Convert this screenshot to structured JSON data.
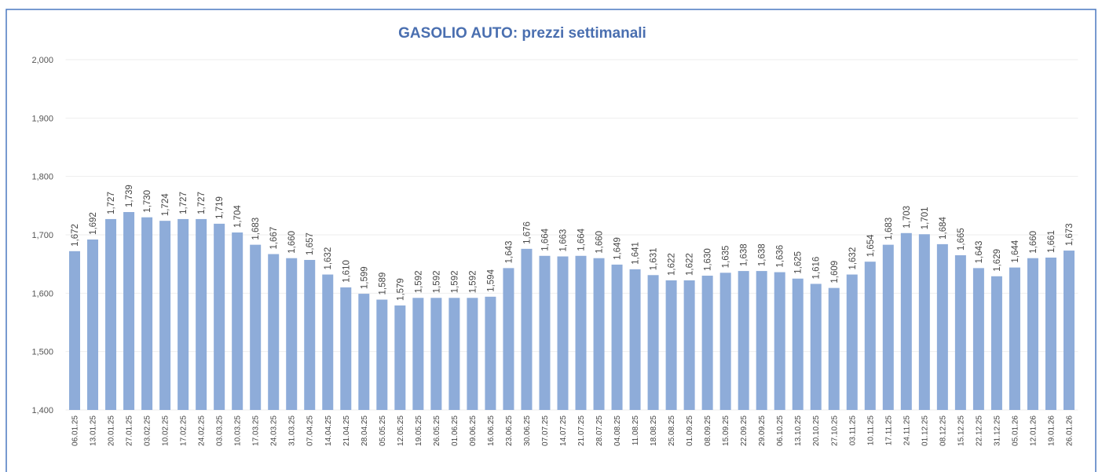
{
  "chart_data": {
    "type": "bar",
    "title": "GASOLIO AUTO: prezzi settimanali",
    "categories": [
      "06.01.25",
      "13.01.25",
      "20.01.25",
      "27.01.25",
      "03.02.25",
      "10.02.25",
      "17.02.25",
      "24.02.25",
      "03.03.25",
      "10.03.25",
      "17.03.25",
      "24.03.25",
      "31.03.25",
      "07.04.25",
      "14.04.25",
      "21.04.25",
      "28.04.25",
      "05.05.25",
      "12.05.25",
      "19.05.25",
      "26.05.25",
      "01.06.25",
      "09.06.25",
      "16.06.25",
      "23.06.25",
      "30.06.25",
      "07.07.25",
      "14.07.25",
      "21.07.25",
      "28.07.25",
      "04.08.25",
      "11.08.25",
      "18.08.25",
      "25.08.25",
      "01.09.25",
      "08.09.25",
      "15.09.25",
      "22.09.25",
      "29.09.25",
      "06.10.25",
      "13.10.25",
      "20.10.25",
      "27.10.25",
      "03.11.25",
      "10.11.25",
      "17.11.25",
      "24.11.25",
      "01.12.25",
      "08.12.25",
      "15.12.25",
      "22.12.25",
      "31.12.25",
      "05.01.26",
      "12.01.26",
      "19.01.26",
      "26.01.26"
    ],
    "values": [
      1.672,
      1.692,
      1.727,
      1.739,
      1.73,
      1.724,
      1.727,
      1.727,
      1.719,
      1.704,
      1.683,
      1.667,
      1.66,
      1.657,
      1.632,
      1.61,
      1.599,
      1.589,
      1.579,
      1.592,
      1.592,
      1.592,
      1.592,
      1.594,
      1.643,
      1.676,
      1.664,
      1.663,
      1.664,
      1.66,
      1.649,
      1.641,
      1.631,
      1.622,
      1.622,
      1.63,
      1.635,
      1.638,
      1.638,
      1.636,
      1.625,
      1.616,
      1.609,
      1.632,
      1.654,
      1.683,
      1.703,
      1.701,
      1.684,
      1.665,
      1.643,
      1.629,
      1.644,
      1.66,
      1.661,
      1.673
    ],
    "value_labels": [
      "1,672",
      "1,692",
      "1,727",
      "1,739",
      "1,730",
      "1,724",
      "1,727",
      "1,727",
      "1,719",
      "1,704",
      "1,683",
      "1,667",
      "1,660",
      "1,657",
      "1,632",
      "1,610",
      "1,599",
      "1,589",
      "1,579",
      "1,592",
      "1,592",
      "1,592",
      "1,592",
      "1,594",
      "1,643",
      "1,676",
      "1,664",
      "1,663",
      "1,664",
      "1,660",
      "1,649",
      "1,641",
      "1,631",
      "1,622",
      "1,622",
      "1,630",
      "1,635",
      "1,638",
      "1,638",
      "1,636",
      "1,625",
      "1,616",
      "1,609",
      "1,632",
      "1,654",
      "1,683",
      "1,703",
      "1,701",
      "1,684",
      "1,665",
      "1,643",
      "1,629",
      "1,644",
      "1,660",
      "1,661",
      "1,673"
    ],
    "color": "#8eacd9",
    "ylim": [
      1.4,
      2.0
    ],
    "yticks": [
      {
        "value": 1.4,
        "label": "1,400"
      },
      {
        "value": 1.5,
        "label": "1,500"
      },
      {
        "value": 1.6,
        "label": "1,600"
      },
      {
        "value": 1.7,
        "label": "1,700"
      },
      {
        "value": 1.8,
        "label": "1,800"
      },
      {
        "value": 1.9,
        "label": "1,900"
      },
      {
        "value": 2.0,
        "label": "2,000"
      }
    ],
    "grid": true
  }
}
